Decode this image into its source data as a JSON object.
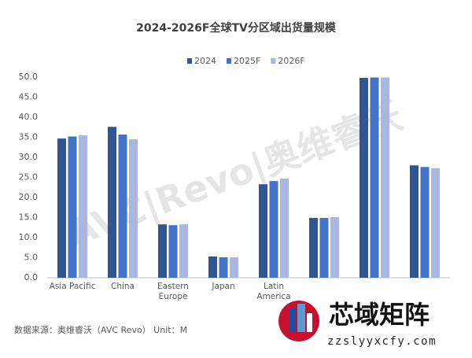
{
  "chart_data": {
    "type": "bar",
    "title": "2024-2026F全球TV分区域出货量规模",
    "categories": [
      "Asia Pacific",
      "China",
      "Eastern Europe",
      "Japan",
      "Latin America",
      null,
      null,
      null
    ],
    "series": [
      {
        "name": "2024",
        "color": "#2f5597",
        "values": [
          34.7,
          37.6,
          13.3,
          5.3,
          23.3,
          14.9,
          49.8,
          28.0
        ]
      },
      {
        "name": "2025F",
        "color": "#4472c4",
        "values": [
          35.2,
          35.7,
          13.1,
          5.1,
          24.1,
          14.9,
          49.9,
          27.6
        ]
      },
      {
        "name": "2026F",
        "color": "#a9b6dd",
        "values": [
          35.5,
          34.5,
          13.3,
          5.1,
          24.7,
          15.1,
          49.9,
          27.3
        ]
      }
    ],
    "ylim": [
      0,
      50
    ],
    "yticks": [
      {
        "value": 0,
        "label": "0.0"
      },
      {
        "value": 5,
        "label": "5.0"
      },
      {
        "value": 10,
        "label": "10.0"
      },
      {
        "value": 15,
        "label": "15.0"
      },
      {
        "value": 20,
        "label": "20.0"
      },
      {
        "value": 25,
        "label": "25.0"
      },
      {
        "value": 30,
        "label": "30.0"
      },
      {
        "value": 35,
        "label": "35.0"
      },
      {
        "value": 40,
        "label": "40.0"
      },
      {
        "value": 45,
        "label": "45.0"
      },
      {
        "value": 50,
        "label": "50.0"
      }
    ],
    "grid": false,
    "legend": "top",
    "source": "数据来源：奥维睿沃（AVC Revo）  Unit：M",
    "watermark": "AVC|Revo|奥维睿沃",
    "logo_title": "芯域矩阵",
    "logo_url": "zzslyyxcfy.com"
  }
}
